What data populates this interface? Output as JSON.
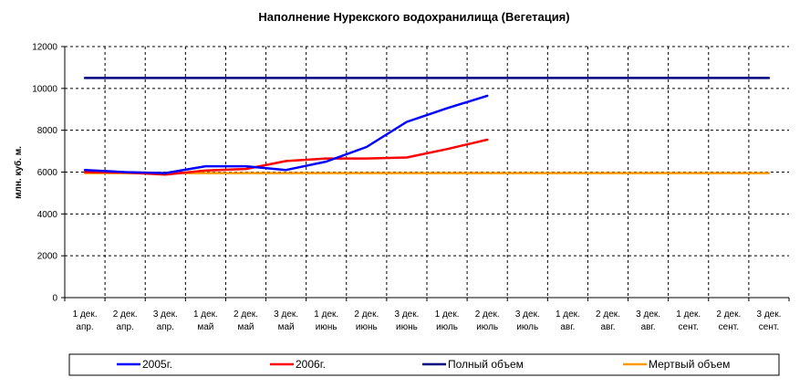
{
  "chart_data": {
    "type": "line",
    "title": "Наполнение Нурекского водохранилища (Вегетация)",
    "xlabel": "",
    "ylabel": "млн. куб. м.",
    "ylim": [
      0,
      12000
    ],
    "yticks": [
      0,
      2000,
      4000,
      6000,
      8000,
      10000,
      12000
    ],
    "grid": true,
    "legend_position": "bottom",
    "categories": [
      [
        "1 дек.",
        "апр."
      ],
      [
        "2 дек.",
        "апр."
      ],
      [
        "3 дек.",
        "апр."
      ],
      [
        "1 дек.",
        "май"
      ],
      [
        "2 дек.",
        "май"
      ],
      [
        "3 дек.",
        "май"
      ],
      [
        "1 дек.",
        "июнь"
      ],
      [
        "2 дек.",
        "июнь"
      ],
      [
        "3 дек.",
        "июнь"
      ],
      [
        "1 дек.",
        "июль"
      ],
      [
        "2 дек.",
        "июль"
      ],
      [
        "3 дек.",
        "июль"
      ],
      [
        "1 дек.",
        "авг."
      ],
      [
        "2 дек.",
        "авг."
      ],
      [
        "3 дек.",
        "авг."
      ],
      [
        "1 дек.",
        "сент."
      ],
      [
        "2 дек.",
        "сент."
      ],
      [
        "3 дек.",
        "сент."
      ]
    ],
    "series": [
      {
        "name": "2005г.",
        "color": "#0000FF",
        "values": [
          6100,
          6000,
          5950,
          6280,
          6280,
          6100,
          6500,
          7200,
          8400,
          9050,
          9650,
          null,
          null,
          null,
          null,
          null,
          null,
          null
        ]
      },
      {
        "name": "2006г.",
        "color": "#FF0000",
        "values": [
          6000,
          5980,
          5880,
          6080,
          6150,
          6530,
          6650,
          6650,
          6700,
          7100,
          7550,
          null,
          null,
          null,
          null,
          null,
          null,
          null
        ]
      },
      {
        "name": "Полный объем",
        "color": "#000080",
        "values": [
          10500,
          10500,
          10500,
          10500,
          10500,
          10500,
          10500,
          10500,
          10500,
          10500,
          10500,
          10500,
          10500,
          10500,
          10500,
          10500,
          10500,
          10500
        ]
      },
      {
        "name": "Мертвый объем",
        "color": "#FF9900",
        "values": [
          5950,
          5950,
          5950,
          5950,
          5950,
          5950,
          5950,
          5950,
          5950,
          5950,
          5950,
          5950,
          5950,
          5950,
          5950,
          5950,
          5950,
          5950
        ]
      }
    ]
  }
}
